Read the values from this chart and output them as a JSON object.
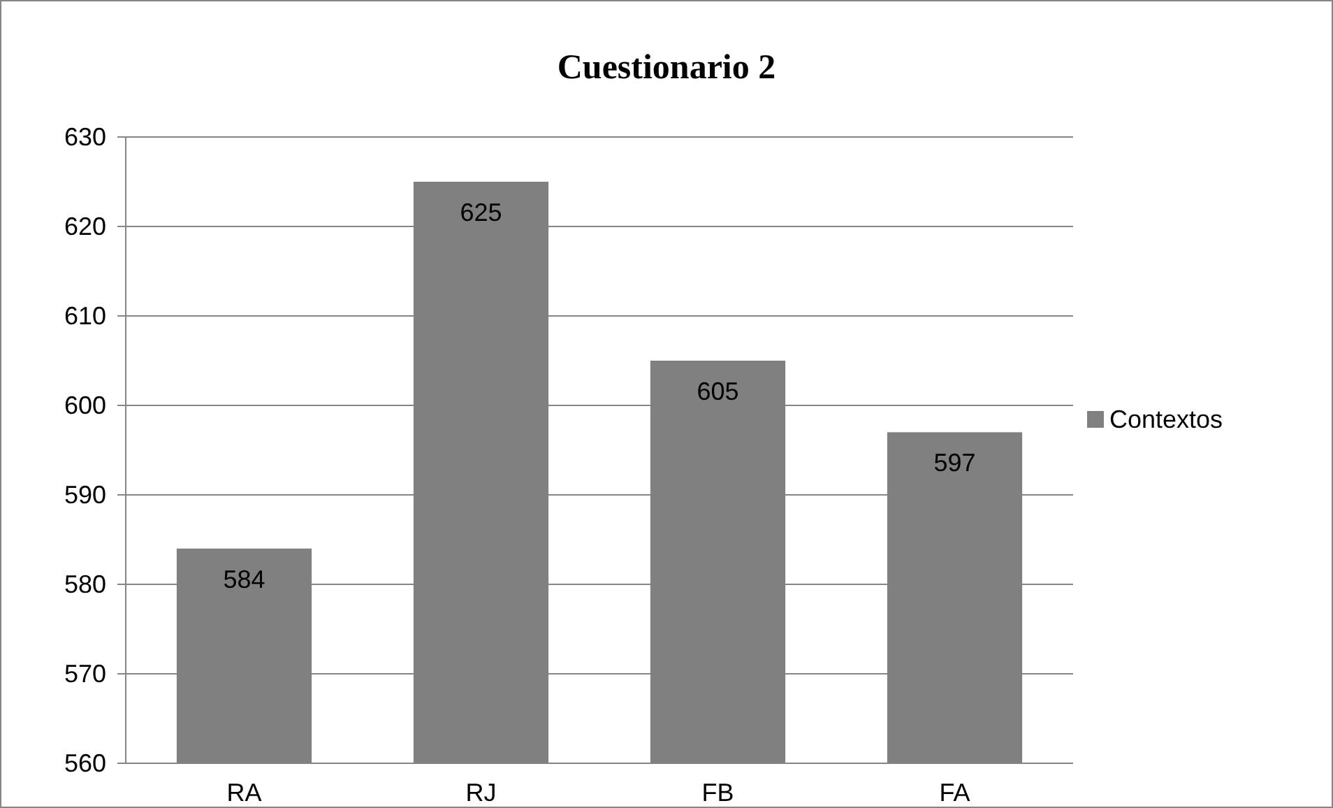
{
  "chart_data": {
    "type": "bar",
    "title": "Cuestionario 2",
    "categories": [
      "RA",
      "RJ",
      "FB",
      "FA"
    ],
    "series": [
      {
        "name": "Contextos",
        "color": "#808080",
        "values": [
          584,
          625,
          605,
          597
        ]
      }
    ],
    "ylim": [
      560,
      630
    ],
    "yticks": [
      560,
      570,
      580,
      590,
      600,
      610,
      620,
      630
    ],
    "grid": "y",
    "legend": "right",
    "data_labels": true
  }
}
